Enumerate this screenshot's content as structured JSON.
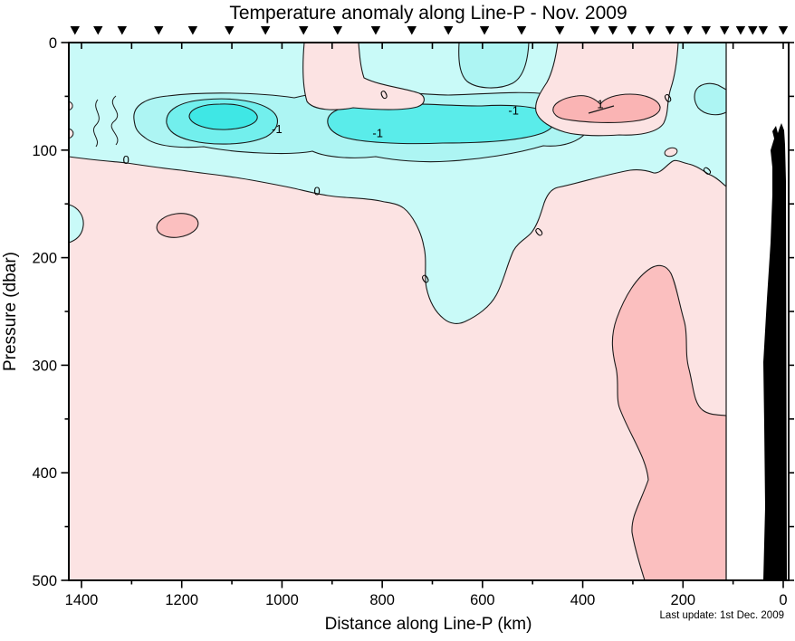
{
  "chart_data": {
    "type": "contour",
    "title": "Temperature anomaly along Line-P - Nov. 2009",
    "xlabel": "Distance along Line-P (km)",
    "ylabel": "Pressure (dbar)",
    "annotation": "Last update: 1st Dec. 2009",
    "x_axis": {
      "range": [
        1425,
        0
      ],
      "reversed": true,
      "major_ticks": [
        1400,
        1200,
        1000,
        800,
        600,
        400,
        200,
        0
      ],
      "minor_tick_interval_km": 100,
      "top_tick_interval_km": 100
    },
    "y_axis": {
      "range": [
        0,
        500
      ],
      "inverted": true,
      "major_ticks": [
        0,
        100,
        200,
        300,
        400,
        500
      ],
      "minor_tick_interval_dbar": 50
    },
    "grid": false,
    "legend": "none",
    "contour_interval_c": 0.5,
    "labeled_levels_c": [
      -1,
      0,
      1
    ],
    "station_markers_km": [
      1413,
      1367,
      1319,
      1246,
      1178,
      1105,
      1033,
      957,
      889,
      813,
      741,
      668,
      596,
      522,
      446,
      376,
      340,
      302,
      266,
      226,
      190,
      154,
      117,
      85,
      61,
      40,
      0
    ],
    "contour_line_labels": [
      {
        "text": "0",
        "km": 1311,
        "dbar": 113,
        "rot": 0
      },
      {
        "text": "0",
        "km": 930,
        "dbar": 142,
        "rot": 0
      },
      {
        "text": "-1",
        "km": 1010,
        "dbar": 84,
        "rot": 0
      },
      {
        "text": "-1",
        "km": 809,
        "dbar": 88,
        "rot": 0
      },
      {
        "text": "-1",
        "km": 538,
        "dbar": 67,
        "rot": 0
      },
      {
        "text": "1",
        "km": 365,
        "dbar": 61,
        "rot": 0
      },
      {
        "text": "0",
        "km": 793,
        "dbar": 52,
        "rot": -25
      },
      {
        "text": "0",
        "km": 710,
        "dbar": 223,
        "rot": -30
      },
      {
        "text": "0",
        "km": 482,
        "dbar": 179,
        "rot": -40
      },
      {
        "text": "0",
        "km": 226,
        "dbar": 55,
        "rot": -30
      },
      {
        "text": "0",
        "km": 146,
        "dbar": 122,
        "rot": -45
      }
    ],
    "regions": [
      {
        "name": "cold-subsurface-band",
        "distance_km": [
          150,
          1425
        ],
        "depth_dbar": [
          25,
          135
        ],
        "anomaly_c": "-0.5 to -2"
      },
      {
        "name": "cold-core-west",
        "distance_km": [
          1005,
          1230
        ],
        "depth_dbar": [
          55,
          95
        ],
        "anomaly_c": "< -1.5"
      },
      {
        "name": "cold-core-central",
        "distance_km": [
          455,
          910
        ],
        "depth_dbar": [
          60,
          95
        ],
        "anomaly_c": "< -1"
      },
      {
        "name": "cold-patch-surface",
        "distance_km": [
          510,
          645
        ],
        "depth_dbar": [
          0,
          45
        ],
        "anomaly_c": "-0.5 to -1"
      },
      {
        "name": "cold-tongue",
        "distance_km": [
          440,
          640
        ],
        "depth_dbar": [
          135,
          262
        ],
        "anomaly_c": "0 to -0.5"
      },
      {
        "name": "warm-surface-notch",
        "distance_km": [
          825,
          960
        ],
        "depth_dbar": [
          0,
          65
        ],
        "anomaly_c": "0 to 0.5"
      },
      {
        "name": "warm-surface-east",
        "distance_km": [
          210,
          450
        ],
        "depth_dbar": [
          0,
          115
        ],
        "anomaly_c": "0.5 to 1"
      },
      {
        "name": "warm-core-east",
        "distance_km": [
          245,
          460
        ],
        "depth_dbar": [
          50,
          75
        ],
        "anomaly_c": "> 1"
      },
      {
        "name": "warm-spot-west",
        "distance_km": [
          1165,
          1250
        ],
        "depth_dbar": [
          160,
          182
        ],
        "anomaly_c": "0.5 to 1"
      },
      {
        "name": "warm-deep-nearshore",
        "distance_km": [
          115,
          345
        ],
        "depth_dbar": [
          205,
          500
        ],
        "anomaly_c": "0.5 to 1"
      },
      {
        "name": "background-deep",
        "distance_km": [
          115,
          1425
        ],
        "depth_dbar": [
          135,
          500
        ],
        "anomaly_c": "0 to 0.5"
      }
    ],
    "palette": {
      "positive_light": "#FCE3E3",
      "positive_medium": "#FBBFBF",
      "positive_strong": "#FAB4B4",
      "negative_light": "#C9FAF8",
      "negative_medium": "#ADF5F3",
      "negative_strong": "#72EFED",
      "negative_core": "#3FE7E5",
      "bathymetry": "#000000",
      "contour_line": "#1a1a1a"
    },
    "notes": {
      "data_right_edge_km": 115,
      "bathymetry_note": "black seafloor profile near coast (0-45 km)",
      "station_marker_glyph": "filled down-triangle"
    }
  }
}
